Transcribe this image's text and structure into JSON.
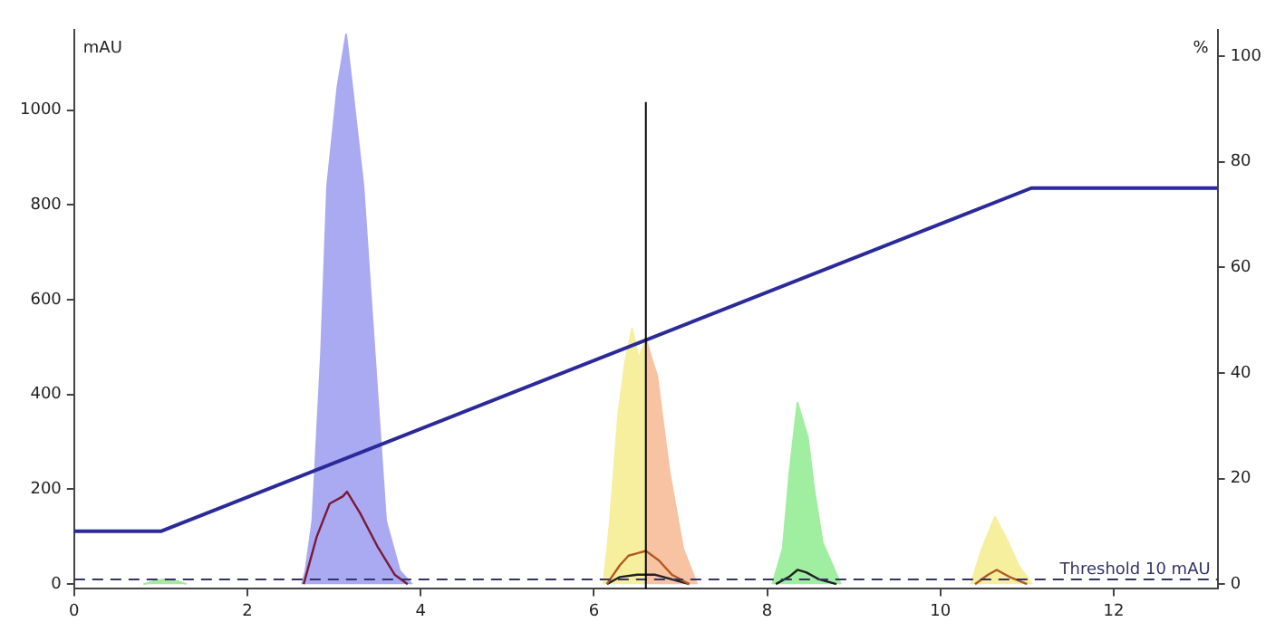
{
  "chart_data": {
    "type": "area",
    "ylabel": "mAU",
    "y2label": "%",
    "xlim": [
      0,
      13.2
    ],
    "xticks": [
      0,
      2,
      4,
      6,
      8,
      10,
      12
    ],
    "ylim": [
      -10,
      1170
    ],
    "yticks": [
      0,
      200,
      400,
      600,
      800,
      1000
    ],
    "y2lim": [
      -0.9,
      105
    ],
    "y2ticks": [
      0,
      20,
      40,
      60,
      80,
      100
    ],
    "grid": false,
    "legend": false,
    "series": [
      {
        "color": "#a8e8a0",
        "x": [
          0.8,
          0.95,
          1.05,
          1.2,
          1.3
        ],
        "values": [
          0,
          8,
          10,
          6,
          0
        ]
      },
      {
        "color": "#aaaaf2",
        "x": [
          2.63,
          2.67,
          2.75,
          2.85,
          2.92,
          3.04,
          3.14,
          3.21,
          3.34,
          3.47,
          3.6,
          3.76,
          3.9
        ],
        "values": [
          0,
          28,
          134,
          486,
          839,
          1050,
          1160,
          1050,
          839,
          486,
          134,
          28,
          0
        ]
      },
      {
        "color": "#f6ef9e",
        "x": [
          6.11,
          6.18,
          6.28,
          6.36,
          6.44,
          6.52,
          6.6
        ],
        "values": [
          0,
          123,
          357,
          470,
          539,
          476,
          519
        ]
      },
      {
        "color": "#f7c3a2",
        "x": [
          6.6,
          6.66,
          6.73,
          6.87,
          7.03,
          7.19
        ],
        "values": [
          519,
          480,
          440,
          240,
          75,
          0
        ]
      },
      {
        "color": "#a0eea0",
        "x": [
          8.06,
          8.18,
          8.26,
          8.35,
          8.47,
          8.54,
          8.64,
          8.85
        ],
        "values": [
          0,
          75,
          240,
          383,
          310,
          204,
          88,
          0
        ]
      },
      {
        "color": "#f6ef9e",
        "x": [
          10.35,
          10.48,
          10.63,
          10.77,
          10.9,
          11.06
        ],
        "values": [
          0,
          75,
          142,
          93,
          40,
          0
        ]
      },
      {
        "type": "line",
        "color": "#7a1a3a",
        "x": [
          2.65,
          2.8,
          2.95,
          3.1,
          3.15,
          3.3,
          3.5,
          3.7,
          3.85
        ],
        "values": [
          0,
          100,
          170,
          185,
          195,
          150,
          80,
          20,
          0
        ]
      },
      {
        "type": "line",
        "color": "#b05a20",
        "x": [
          6.15,
          6.3,
          6.4,
          6.5,
          6.6,
          6.75,
          6.9,
          7.1
        ],
        "values": [
          0,
          40,
          60,
          65,
          70,
          50,
          20,
          0
        ]
      },
      {
        "type": "line",
        "color": "#202020",
        "x": [
          6.15,
          6.3,
          6.5,
          6.7,
          6.9,
          7.1
        ],
        "values": [
          0,
          15,
          20,
          20,
          10,
          0
        ]
      },
      {
        "type": "line",
        "color": "#202020",
        "x": [
          8.1,
          8.25,
          8.35,
          8.45,
          8.6,
          8.8
        ],
        "values": [
          0,
          15,
          30,
          25,
          10,
          0
        ]
      },
      {
        "type": "line",
        "color": "#b05a20",
        "x": [
          10.4,
          10.55,
          10.65,
          10.8,
          11.0
        ],
        "values": [
          0,
          20,
          30,
          15,
          0
        ]
      },
      {
        "type": "line",
        "axis": "y2",
        "color": "#2a2a9a",
        "x": [
          0,
          1,
          11.05,
          13.2
        ],
        "values": [
          10,
          10,
          75,
          75
        ]
      }
    ],
    "ref_lines": [
      {
        "axis": "y",
        "value": 10,
        "label": "Threshold 10 mAU",
        "color": "#333366",
        "line_style": "dashed"
      },
      {
        "axis": "x",
        "value": 6.6,
        "color": "#000000"
      }
    ]
  }
}
